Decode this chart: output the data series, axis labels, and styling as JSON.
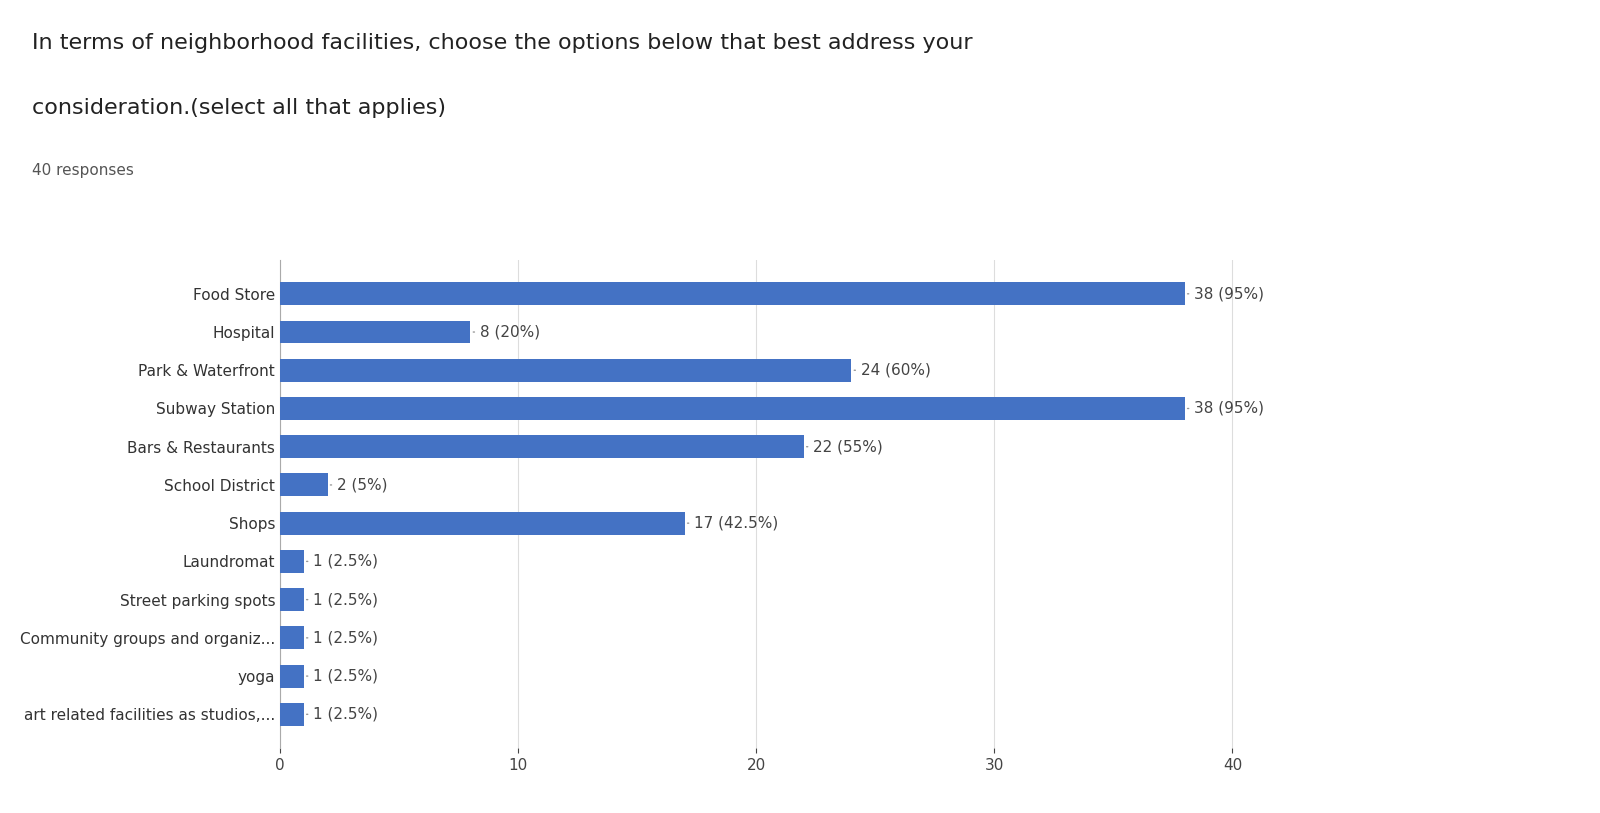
{
  "title_line1": "In terms of neighborhood facilities, choose the options below that best address your",
  "title_line2": "consideration.(select all that applies)",
  "subtitle": "40 responses",
  "categories": [
    "Food Store",
    "Hospital",
    "Park & Waterfront",
    "Subway Station",
    "Bars & Restaurants",
    "School District",
    "Shops",
    "Laundromat",
    "Street parking spots",
    "Community groups and organiz...",
    "yoga",
    "art related facilities as studios,..."
  ],
  "values": [
    38,
    8,
    24,
    38,
    22,
    2,
    17,
    1,
    1,
    1,
    1,
    1
  ],
  "labels": [
    "38 (95%)",
    "8 (20%)",
    "24 (60%)",
    "38 (95%)",
    "22 (55%)",
    "2 (5%)",
    "17 (42.5%)",
    "1 (2.5%)",
    "1 (2.5%)",
    "1 (2.5%)",
    "1 (2.5%)",
    "1 (2.5%)"
  ],
  "bar_color": "#4472c4",
  "background_color": "#ffffff",
  "xlim": [
    0,
    42
  ],
  "xticks": [
    0,
    10,
    20,
    30,
    40
  ],
  "title_fontsize": 16,
  "subtitle_fontsize": 11,
  "label_fontsize": 11,
  "tick_fontsize": 11,
  "bar_height": 0.6
}
